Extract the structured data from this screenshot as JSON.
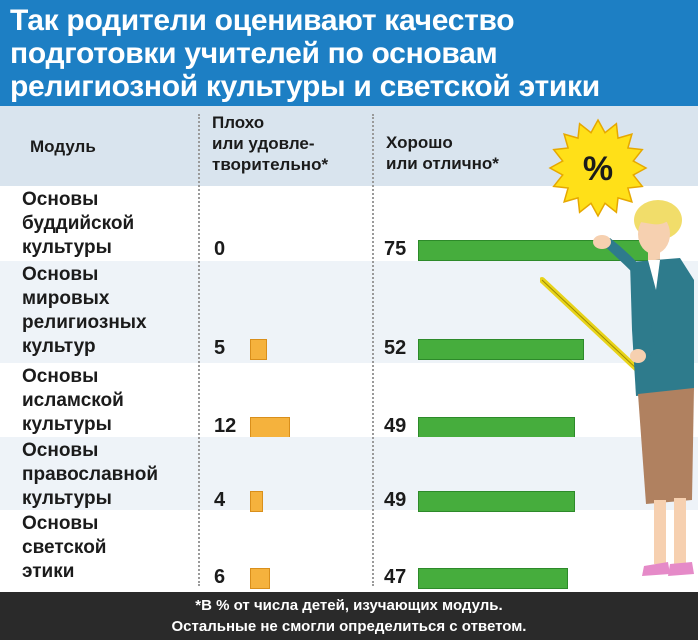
{
  "title": {
    "lines": [
      "Так родители оценивают качество",
      "подготовки учителей по основам",
      "религиозной культуры и светской этики"
    ]
  },
  "header": {
    "module": "Модуль",
    "bad": "Плохо\nили удовле-\nтворительно*",
    "good": "Хорошо\nили отлично*"
  },
  "badge": {
    "symbol": "%"
  },
  "colors": {
    "title_bg": "#1d7fc4",
    "bad_bar": "#f5b23d",
    "good_bar": "#46ad3d",
    "footer_bg": "#2a2a2a"
  },
  "chart_data": {
    "type": "bar",
    "categories": [
      "Основы буддийской культуры",
      "Основы мировых религиозных культур",
      "Основы исламской культуры",
      "Основы православной культуры",
      "Основы светской этики"
    ],
    "series": [
      {
        "name": "Плохо или удовлетворительно*",
        "values": [
          0,
          5,
          12,
          4,
          6
        ]
      },
      {
        "name": "Хорошо или отлично*",
        "values": [
          75,
          52,
          49,
          49,
          47
        ]
      }
    ],
    "ylabel": "%"
  },
  "rows": [
    {
      "module": "Основы\nбуддийской\nкультуры",
      "bad": "0",
      "good": "75"
    },
    {
      "module": "Основы\nмировых\nрелигиозных\nкультур",
      "bad": "5",
      "good": "52"
    },
    {
      "module": "Основы\nисламской\nкультуры",
      "bad": "12",
      "good": "49"
    },
    {
      "module": "Основы\nправославной\nкультуры",
      "bad": "4",
      "good": "49"
    },
    {
      "module": "Основы\nсветской\nэтики",
      "bad": "6",
      "good": "47"
    }
  ],
  "footer": {
    "line1": "*В % от числа детей, изучающих модуль.",
    "line2": "Остальные не смогли определиться с ответом."
  }
}
